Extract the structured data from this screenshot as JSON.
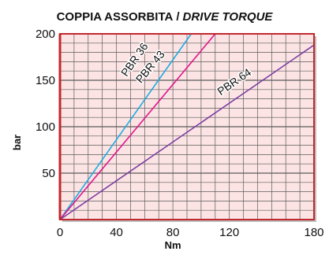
{
  "title": {
    "main": "COPPIA ASSORBITA",
    "sep": "/",
    "alt": "DRIVE TORQUE"
  },
  "colors": {
    "plot_bg": "#fce4e4",
    "grid_major": "#5a5a5a",
    "grid_minor": "#5a5a5a",
    "frame": "#c0282d"
  },
  "chart_data": {
    "type": "line",
    "title": "COPPIA ASSORBITA / DRIVE TORQUE",
    "xlabel": "Nm",
    "ylabel": "bar",
    "xlim": [
      0,
      180
    ],
    "ylim": [
      0,
      200
    ],
    "x_ticks": [
      "0",
      "40",
      "80",
      "120",
      "180"
    ],
    "x_tick_values": [
      0,
      40,
      80,
      120,
      180
    ],
    "y_ticks": [
      "50",
      "100",
      "150",
      "200"
    ],
    "y_tick_values": [
      50,
      100,
      150,
      200
    ],
    "grid": true,
    "series": [
      {
        "name": "PBR 36",
        "color": "#1eaade",
        "x": [
          0,
          93
        ],
        "y": [
          0,
          200
        ]
      },
      {
        "name": "PBR 43",
        "color": "#e0158a",
        "x": [
          0,
          110
        ],
        "y": [
          0,
          200
        ]
      },
      {
        "name": "PBR 64",
        "color": "#7c3fa2",
        "x": [
          0,
          180
        ],
        "y": [
          0,
          188
        ]
      }
    ]
  }
}
